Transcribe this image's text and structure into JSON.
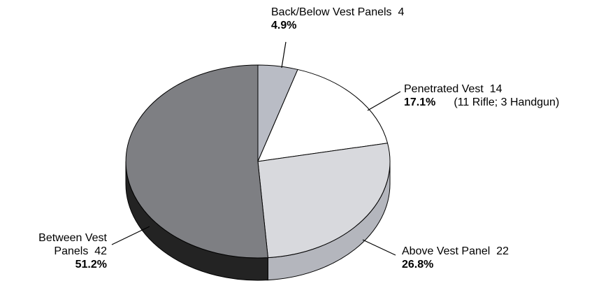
{
  "chart_data": {
    "type": "pie",
    "style": "3d",
    "slices": [
      {
        "label": "Back/Below Vest Panels",
        "count": 4,
        "percent": 4.9,
        "percent_text": "4.9%",
        "color": "#b9bcc5"
      },
      {
        "label": "Penetrated Vest",
        "count": 14,
        "percent": 17.1,
        "percent_text": "17.1%",
        "note": "(11 Rifle; 3 Handgun)",
        "color": "#ffffff"
      },
      {
        "label": "Above Vest Panel",
        "count": 22,
        "percent": 26.8,
        "percent_text": "26.8%",
        "color": "#d8d9dd"
      },
      {
        "label": "Between Vest Panels",
        "label_line1": "Between Vest",
        "label_line2": "Panels",
        "count": 42,
        "percent": 51.2,
        "percent_text": "51.2%",
        "color": "#7e7f83"
      }
    ],
    "side_colors": {
      "Above Vest Panel": "#b4b6bd",
      "Between Vest Panels": "#232323"
    }
  }
}
